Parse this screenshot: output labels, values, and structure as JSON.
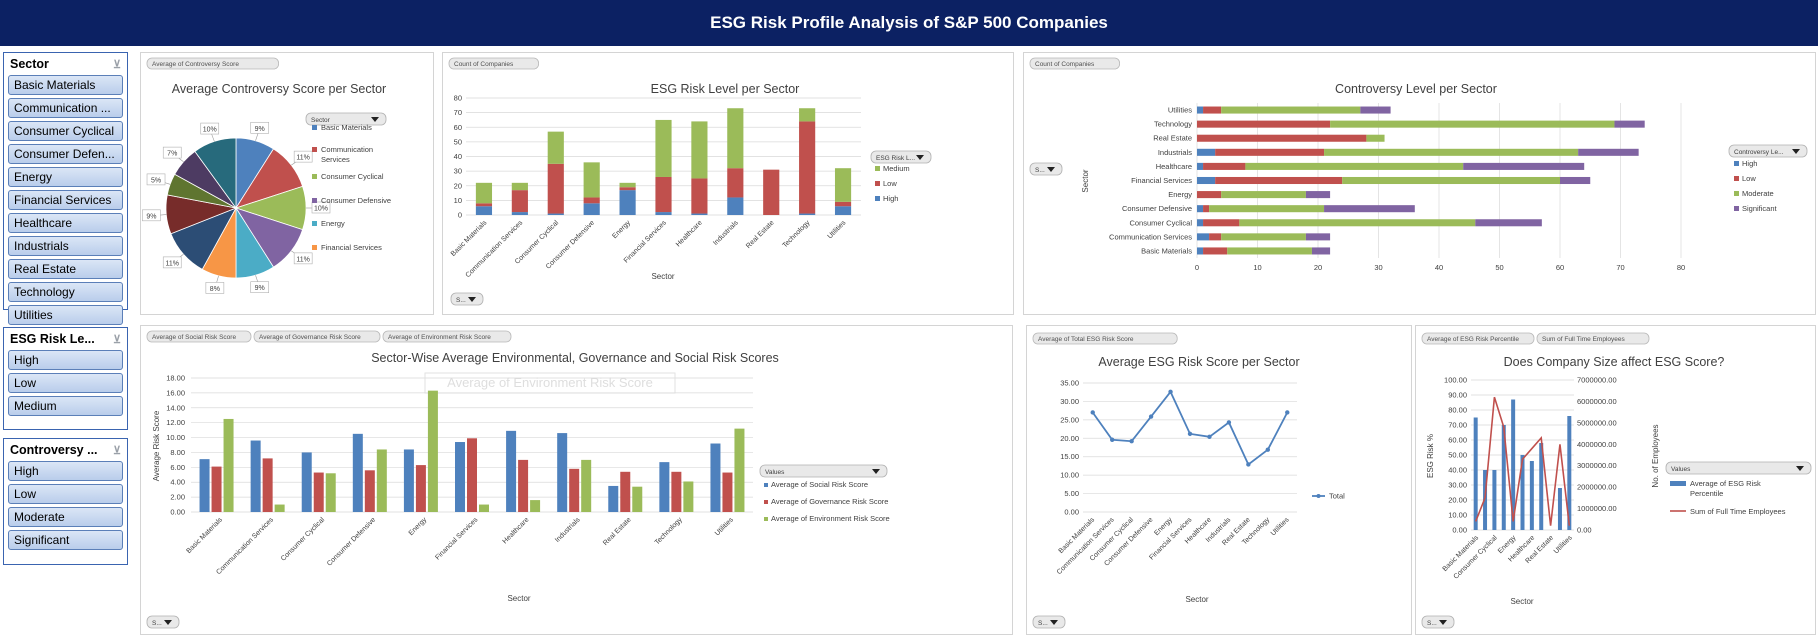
{
  "title": "ESG Risk Profile Analysis of S&P 500 Companies",
  "slicers": [
    {
      "header": "Sector",
      "items": [
        "Basic Materials",
        "Communication ...",
        "Consumer Cyclical",
        "Consumer Defen...",
        "Energy",
        "Financial Services",
        "Healthcare",
        "Industrials",
        "Real Estate",
        "Technology",
        "Utilities"
      ]
    },
    {
      "header": "ESG Risk Le...",
      "items": [
        "High",
        "Low",
        "Medium"
      ]
    },
    {
      "header": "Controversy ...",
      "items": [
        "High",
        "Low",
        "Moderate",
        "Significant"
      ]
    }
  ],
  "icons": {
    "clear_filter": "filter-clear-icon",
    "dropdown": "dropdown-arrow-icon"
  },
  "colors": {
    "blue": "#4e81bd",
    "red": "#c0504d",
    "green": "#9bbb59",
    "purple": "#8064a2",
    "aqua": "#4bacc6",
    "orange": "#f79646",
    "darkblue": "#2c4d75",
    "darkred": "#772c2a",
    "darkgreen": "#5f7530",
    "darkpurple": "#4d3b62",
    "teal": "#276a7c"
  },
  "chart_data": [
    {
      "type": "pie",
      "title": "Average Controversy Score per Sector",
      "field_button": "Average of Controversy Score",
      "legend_button": "Sector",
      "categories": [
        "Basic Materials",
        "Communication Services",
        "Consumer Cyclical",
        "Consumer Defensive",
        "Energy",
        "Financial Services",
        "Healthcare",
        "Industrials",
        "Real Estate",
        "Technology",
        "Utilities"
      ],
      "values": [
        9,
        11,
        10,
        11,
        9,
        8,
        11,
        9,
        5,
        7,
        10
      ],
      "data_labels": [
        "9%",
        "11%",
        "10%",
        "11%",
        "9%",
        "8%",
        "11%",
        "9%",
        "5%",
        "7%",
        "10%"
      ],
      "legend": [
        "Basic Materials",
        "Communication Services",
        "Consumer Cyclical",
        "Consumer Defensive",
        "Energy",
        "Financial Services"
      ]
    },
    {
      "type": "bar",
      "title": "ESG Risk Level per Sector",
      "field_button": "Count of Companies",
      "legend_button": "ESG Risk L...",
      "axis_button": "S...",
      "xlabel": "Sector",
      "ylim": [
        0,
        80
      ],
      "yticks": [
        "0",
        "10",
        "20",
        "30",
        "40",
        "50",
        "60",
        "70",
        "80"
      ],
      "categories": [
        "Basic Materials",
        "Communication Services",
        "Consumer Cyclical",
        "Consumer Defensive",
        "Energy",
        "Financial Services",
        "Healthcare",
        "Industrials",
        "Real Estate",
        "Technology",
        "Utilities"
      ],
      "series": [
        {
          "name": "High",
          "values": [
            6,
            2,
            1,
            8,
            17,
            2,
            1,
            12,
            0,
            1,
            6
          ]
        },
        {
          "name": "Low",
          "values": [
            2,
            15,
            34,
            4,
            2,
            24,
            24,
            20,
            31,
            63,
            3
          ]
        },
        {
          "name": "Medium",
          "values": [
            14,
            5,
            22,
            24,
            3,
            39,
            39,
            41,
            0,
            9,
            23
          ]
        }
      ],
      "legend": [
        "Medium",
        "Low",
        "High"
      ]
    },
    {
      "type": "bar",
      "orientation": "horizontal",
      "title": "Controversy Level per Sector",
      "field_button": "Count of Companies",
      "legend_button": "Controversy Le...",
      "axis_button": "S...",
      "ylabel": "Sector",
      "xlim": [
        0,
        80
      ],
      "xticks": [
        "0",
        "10",
        "20",
        "30",
        "40",
        "50",
        "60",
        "70",
        "80"
      ],
      "categories": [
        "Utilities",
        "Technology",
        "Real Estate",
        "Industrials",
        "Healthcare",
        "Financial Services",
        "Energy",
        "Consumer Defensive",
        "Consumer Cyclical",
        "Communication Services",
        "Basic Materials"
      ],
      "series": [
        {
          "name": "High",
          "values": [
            1,
            0,
            0,
            3,
            1,
            3,
            0,
            1,
            1,
            2,
            1
          ]
        },
        {
          "name": "Low",
          "values": [
            3,
            22,
            28,
            18,
            7,
            21,
            4,
            1,
            6,
            2,
            4
          ]
        },
        {
          "name": "Moderate",
          "values": [
            23,
            47,
            3,
            42,
            36,
            36,
            14,
            19,
            39,
            14,
            14
          ]
        },
        {
          "name": "Significant",
          "values": [
            5,
            5,
            0,
            10,
            20,
            5,
            4,
            15,
            11,
            4,
            3
          ]
        }
      ],
      "legend": [
        "High",
        "Low",
        "Moderate",
        "Significant"
      ]
    },
    {
      "type": "bar",
      "title": "Sector-Wise Average Environmental, Governance and Social Risk Scores",
      "field_buttons": [
        "Average of Social Risk Score",
        "Average of Governance Risk Score",
        "Average of Environment Risk Score"
      ],
      "tooltip": "Average of Environment Risk Score",
      "legend_button": "Values",
      "axis_button": "S...",
      "xlabel": "Sector",
      "ylabel": "Average Risk Score",
      "ylim": [
        0,
        18
      ],
      "yticks": [
        "0.00",
        "2.00",
        "4.00",
        "6.00",
        "8.00",
        "10.00",
        "12.00",
        "14.00",
        "16.00",
        "18.00"
      ],
      "categories": [
        "Basic Materials",
        "Communication Services",
        "Consumer Cyclical",
        "Consumer Defensive",
        "Energy",
        "Financial Services",
        "Healthcare",
        "Industrials",
        "Real Estate",
        "Technology",
        "Utilities"
      ],
      "series": [
        {
          "name": "Average of Social Risk Score",
          "values": [
            7.1,
            9.6,
            8.0,
            10.5,
            8.4,
            9.4,
            10.9,
            10.6,
            3.5,
            6.7,
            9.2
          ]
        },
        {
          "name": "Average of Governance Risk Score",
          "values": [
            6.1,
            7.2,
            5.3,
            5.6,
            6.3,
            9.9,
            7.0,
            5.8,
            5.4,
            5.4,
            5.3
          ]
        },
        {
          "name": "Average of Environment Risk Score",
          "values": [
            12.5,
            1.0,
            5.2,
            8.4,
            16.3,
            1.0,
            1.6,
            7.0,
            3.4,
            4.1,
            11.2
          ]
        }
      ],
      "legend": [
        "Average of Social Risk Score",
        "Average of Governance Risk Score",
        "Average of Environment Risk Score"
      ]
    },
    {
      "type": "line",
      "title": "Average ESG Risk Score per Sector",
      "field_button": "Average of Total ESG Risk Score",
      "axis_button": "S...",
      "xlabel": "Sector",
      "ylim": [
        0,
        35
      ],
      "yticks": [
        "0.00",
        "5.00",
        "10.00",
        "15.00",
        "20.00",
        "25.00",
        "30.00",
        "35.00"
      ],
      "categories": [
        "Basic Materials",
        "Communication Services",
        "Consumer Cyclical",
        "Consumer Defensive",
        "Energy",
        "Financial Services",
        "Healthcare",
        "Industrials",
        "Real Estate",
        "Technology",
        "Utilities"
      ],
      "series": [
        {
          "name": "Total",
          "values": [
            27.0,
            19.6,
            19.2,
            25.9,
            32.6,
            21.2,
            20.4,
            24.3,
            12.9,
            16.9,
            27.0
          ]
        }
      ],
      "legend": [
        "Total"
      ]
    },
    {
      "type": "bar",
      "combo": "bar+line",
      "title": "Does Company Size affect ESG Score?",
      "field_buttons": [
        "Average of ESG Risk Percentile",
        "Sum of Full Time Employees"
      ],
      "legend_button": "Values",
      "axis_button": "S...",
      "xlabel": "Sector",
      "ylabel": "ESG Risk %",
      "y2label": "No. of Employees",
      "ylim": [
        0,
        100
      ],
      "y2lim": [
        0,
        7000000
      ],
      "yticks": [
        "0.00",
        "10.00",
        "20.00",
        "30.00",
        "40.00",
        "50.00",
        "60.00",
        "70.00",
        "80.00",
        "90.00",
        "100.00"
      ],
      "y2ticks": [
        "0.00",
        "1000000.00",
        "2000000.00",
        "3000000.00",
        "4000000.00",
        "5000000.00",
        "6000000.00",
        "7000000.00"
      ],
      "categories": [
        "Basic Materials",
        "Communication Services",
        "Consumer Cyclical",
        "Consumer Defensive",
        "Energy",
        "Financial Services",
        "Healthcare",
        "Industrials",
        "Real Estate",
        "Technology",
        "Utilities"
      ],
      "x_tick_labels": [
        "Basic Materials",
        "",
        "Consumer Cyclical",
        "",
        "Energy",
        "",
        "Healthcare",
        "",
        "Real Estate",
        "",
        "Utilities"
      ],
      "series": [
        {
          "name": "Average of ESG Risk Percentile",
          "values": [
            75,
            40,
            40,
            70,
            87,
            50,
            46,
            58,
            0,
            28,
            76
          ]
        },
        {
          "name": "Sum of Full Time Employees",
          "values": [
            400000,
            1500000,
            6200000,
            4800000,
            400000,
            3300000,
            3800000,
            4300000,
            200000,
            4000000,
            200000
          ]
        }
      ],
      "legend": [
        "Average of ESG Risk Percentile",
        "Sum of Full Time Employees"
      ]
    }
  ]
}
